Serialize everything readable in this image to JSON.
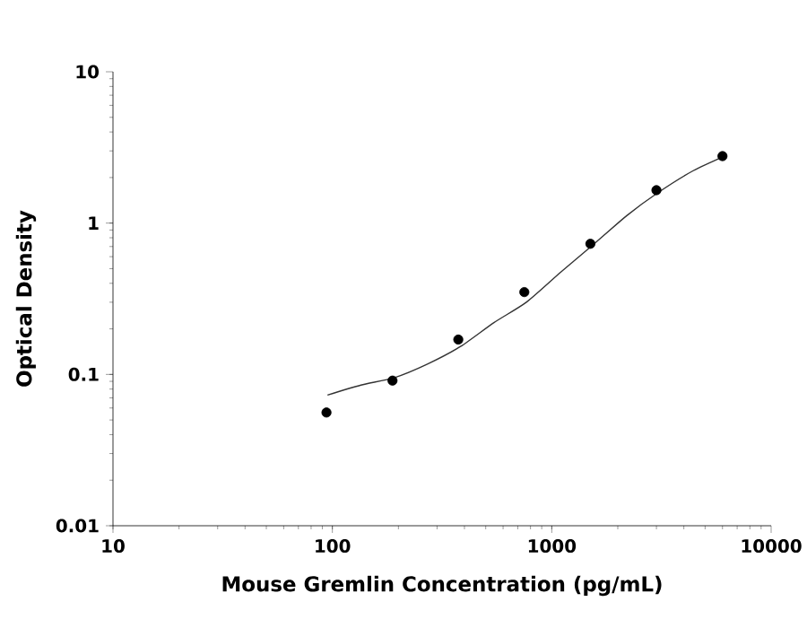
{
  "chart_data": {
    "type": "scatter",
    "xlabel": "Mouse Gremlin Concentration (pg/mL)",
    "ylabel": "Optical Density",
    "log": "xy",
    "xlim": [
      10,
      10000
    ],
    "ylim": [
      0.01,
      10
    ],
    "xticks": [
      10,
      100,
      1000,
      10000
    ],
    "yticks": [
      0.01,
      0.1,
      1,
      10
    ],
    "series": [
      {
        "type": "scatter",
        "marker": "circle",
        "color": "#000000",
        "x": [
          94,
          188,
          375,
          750,
          1500,
          3000,
          6000
        ],
        "values": [
          0.056,
          0.091,
          0.17,
          0.35,
          0.73,
          1.65,
          2.77
        ]
      },
      {
        "type": "line",
        "color": "#333333",
        "line_style": "solid",
        "marker": "none",
        "x": [
          95,
          135,
          191,
          271,
          384,
          545,
          766,
          1100,
          1528,
          2197,
          3070,
          4415,
          6120
        ],
        "values": [
          0.073,
          0.085,
          0.095,
          0.117,
          0.153,
          0.22,
          0.3,
          0.475,
          0.71,
          1.12,
          1.6,
          2.22,
          2.77
        ]
      }
    ]
  }
}
